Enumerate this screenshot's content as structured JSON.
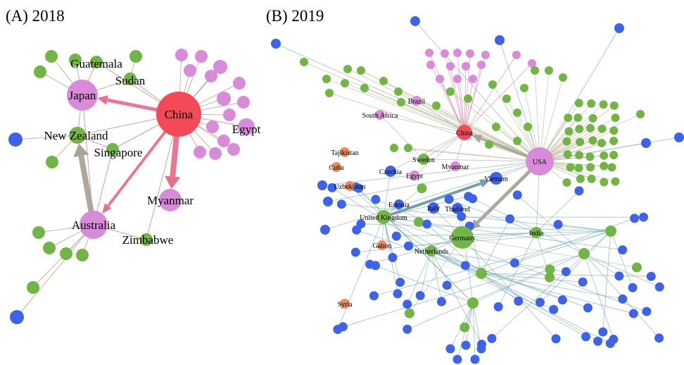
{
  "panels": [
    {
      "title": "(A) 2018",
      "nodes": [
        {
          "label": "China"
        },
        {
          "label": "Japan"
        },
        {
          "label": "Guatemala"
        },
        {
          "label": "Sudan"
        },
        {
          "label": "New Zealand"
        },
        {
          "label": "Singapore"
        },
        {
          "label": "Egypt"
        },
        {
          "label": "Myanmar"
        },
        {
          "label": "Australia"
        },
        {
          "label": "Zimbabwe"
        }
      ]
    },
    {
      "title": "(B) 2019",
      "nodes": [
        {
          "label": "South Africa"
        },
        {
          "label": "Brazil"
        },
        {
          "label": "China"
        },
        {
          "label": "Tajikistan"
        },
        {
          "label": "Cuba"
        },
        {
          "label": "Czechia"
        },
        {
          "label": "Sweden"
        },
        {
          "label": "Myanmar"
        },
        {
          "label": "Egypt"
        },
        {
          "label": "USA"
        },
        {
          "label": "Uzbekistan"
        },
        {
          "label": "Vietnam"
        },
        {
          "label": "Estonia"
        },
        {
          "label": "Italy"
        },
        {
          "label": "Thailand"
        },
        {
          "label": "United Kingdom"
        },
        {
          "label": "Germany"
        },
        {
          "label": "India"
        },
        {
          "label": "Gabon"
        },
        {
          "label": "Netherlands"
        },
        {
          "label": "Syria"
        }
      ]
    }
  ]
}
